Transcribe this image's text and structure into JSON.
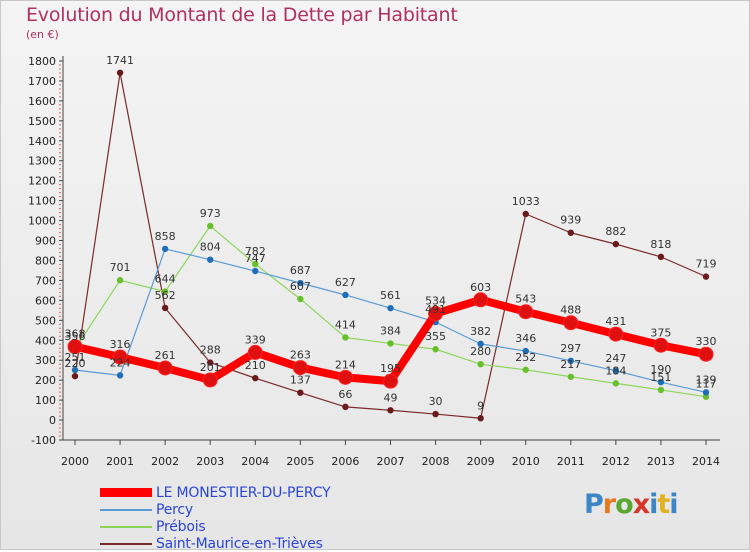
{
  "title": "Evolution du Montant de la Dette par Habitant",
  "subtitle": "(en €)",
  "logo": {
    "text": "Proxiti"
  },
  "chart_data": {
    "type": "line",
    "title": "Evolution du Montant de la Dette par Habitant",
    "subtitle": "(en €)",
    "xlabel": "",
    "ylabel": "",
    "ylim": [
      -100,
      1800
    ],
    "yticks": [
      -100,
      0,
      100,
      200,
      300,
      400,
      500,
      600,
      700,
      800,
      900,
      1000,
      1100,
      1200,
      1300,
      1400,
      1500,
      1600,
      1700,
      1800
    ],
    "grid": false,
    "legend": "bottom-left",
    "categories": [
      "2000",
      "2001",
      "2002",
      "2003",
      "2004",
      "2005",
      "2006",
      "2007",
      "2008",
      "2009",
      "2010",
      "2011",
      "2012",
      "2013",
      "2014"
    ],
    "series": [
      {
        "name": "LE MONESTIER-DU-PERCY",
        "color": "#ff0000",
        "marker": "#e01010",
        "width": 8,
        "values": [
          368,
          316,
          261,
          201,
          339,
          263,
          214,
          195,
          534,
          603,
          543,
          488,
          431,
          375,
          330
        ]
      },
      {
        "name": "Percy",
        "color": "#5a9bd5",
        "marker": "#1f6fb8",
        "width": 1.2,
        "values": [
          251,
          224,
          858,
          804,
          747,
          687,
          627,
          561,
          491,
          382,
          346,
          297,
          247,
          190,
          139
        ]
      },
      {
        "name": "Prébois",
        "color": "#8bd65a",
        "marker": "#66c02a",
        "width": 1.2,
        "values": [
          356,
          701,
          644,
          973,
          782,
          607,
          414,
          384,
          355,
          280,
          252,
          217,
          184,
          151,
          117
        ]
      },
      {
        "name": "Saint-Maurice-en-Trièves",
        "color": "#7a2a2a",
        "marker": "#6a1a1a",
        "width": 1.2,
        "values": [
          220,
          1741,
          562,
          288,
          210,
          137,
          66,
          49,
          30,
          9,
          1033,
          939,
          882,
          818,
          719
        ]
      }
    ]
  }
}
